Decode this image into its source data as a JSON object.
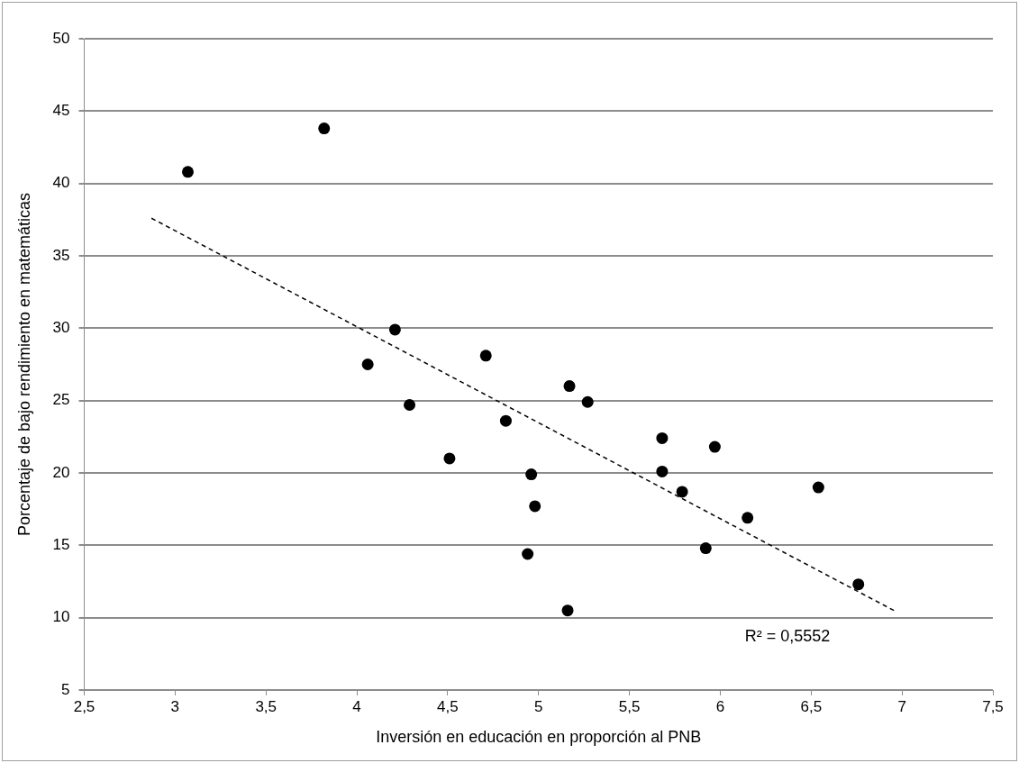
{
  "chart_data": {
    "type": "scatter",
    "xlabel": "Inversión en educación en proporción al PNB",
    "ylabel": "Porcentaje de bajo rendimiento en matemáticas",
    "xlim": [
      2.5,
      7.5
    ],
    "xticks": [
      {
        "value": 2.5,
        "label": "2,5"
      },
      3,
      {
        "value": 3.5,
        "label": "3,5"
      },
      4,
      {
        "value": 4.5,
        "label": "4,5"
      },
      5,
      {
        "value": 5.5,
        "label": "5,5"
      },
      6,
      {
        "value": 6.5,
        "label": "6,5"
      },
      7,
      {
        "value": 7.5,
        "label": "7,5"
      }
    ],
    "ylim": [
      5,
      50
    ],
    "yticks": [
      5,
      10,
      15,
      20,
      25,
      30,
      35,
      40,
      45,
      50
    ],
    "grid": "y",
    "legend": false,
    "marker": "circle",
    "series": [
      {
        "color": "#000000",
        "x": [
          3.07,
          3.82,
          4.21,
          4.06,
          4.71,
          4.29,
          4.51,
          4.82,
          4.96,
          4.98,
          4.94,
          5.17,
          5.27,
          5.16,
          5.68,
          5.68,
          5.97,
          5.79,
          5.92,
          6.15,
          6.54,
          6.76
        ],
        "values": [
          40.8,
          43.8,
          29.9,
          27.5,
          28.1,
          24.7,
          21.0,
          23.6,
          19.9,
          17.7,
          14.4,
          26.0,
          24.9,
          10.5,
          22.4,
          20.1,
          21.8,
          18.7,
          14.8,
          16.9,
          19.0,
          12.3
        ]
      },
      {
        "type": "line",
        "color": "#000000",
        "line_style": "dashed",
        "marker": "none",
        "x": [
          2.87,
          6.97
        ],
        "values": [
          37.6,
          10.4
        ]
      }
    ],
    "annotations": [
      "R² = 0,5552"
    ]
  }
}
